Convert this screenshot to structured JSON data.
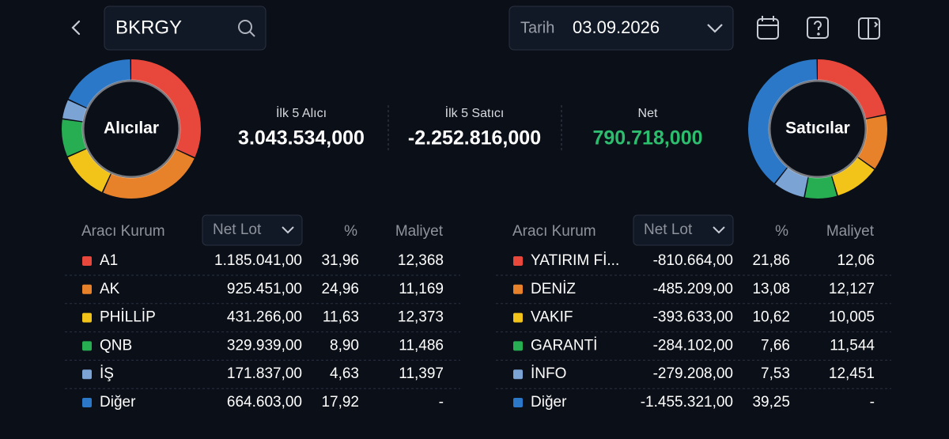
{
  "header": {
    "search": "BKRGY",
    "date_label": "Tarih",
    "date": "03.09.2026"
  },
  "donuts": [
    "Alıcılar",
    "Satıcılar"
  ],
  "summary": [
    {
      "label": "İlk 5 Alıcı",
      "value": "3.043.534,000",
      "color": "#ffffff"
    },
    {
      "label": "İlk 5 Satıcı",
      "value": "-2.252.816,000",
      "color": "#ffffff"
    },
    {
      "label": "Net",
      "value": "790.718,000",
      "color": "#2dbd6e"
    }
  ],
  "tables": [
    {
      "columns": [
        "Aracı Kurum",
        "Net Lot",
        "%",
        "Maliyet"
      ],
      "rows": [
        {
          "name": "A1",
          "color": "#e8483c",
          "net_lot": "1.185.041,00",
          "pct": "31,96",
          "cost": "12,368"
        },
        {
          "name": "AK",
          "color": "#e8822a",
          "net_lot": "925.451,00",
          "pct": "24,96",
          "cost": "11,169"
        },
        {
          "name": "PHİLLİP",
          "color": "#f2c318",
          "net_lot": "431.266,00",
          "pct": "11,63",
          "cost": "12,373"
        },
        {
          "name": "QNB",
          "color": "#27ae52",
          "net_lot": "329.939,00",
          "pct": "8,90",
          "cost": "11,486"
        },
        {
          "name": "İŞ",
          "color": "#7ba3d3",
          "net_lot": "171.837,00",
          "pct": "4,63",
          "cost": "11,397"
        },
        {
          "name": "Diğer",
          "color": "#2b78c8",
          "net_lot": "664.603,00",
          "pct": "17,92",
          "cost": "-"
        }
      ]
    },
    {
      "columns": [
        "Aracı Kurum",
        "Net Lot",
        "%",
        "Maliyet"
      ],
      "rows": [
        {
          "name": "YATIRIM Fİ...",
          "color": "#e8483c",
          "net_lot": "-810.664,00",
          "pct": "21,86",
          "cost": "12,06"
        },
        {
          "name": "DENİZ",
          "color": "#e8822a",
          "net_lot": "-485.209,00",
          "pct": "13,08",
          "cost": "12,127"
        },
        {
          "name": "VAKIF",
          "color": "#f2c318",
          "net_lot": "-393.633,00",
          "pct": "10,62",
          "cost": "10,005"
        },
        {
          "name": "GARANTİ",
          "color": "#27ae52",
          "net_lot": "-284.102,00",
          "pct": "7,66",
          "cost": "11,544"
        },
        {
          "name": "İNFO",
          "color": "#7ba3d3",
          "net_lot": "-279.208,00",
          "pct": "7,53",
          "cost": "12,451"
        },
        {
          "name": "Diğer",
          "color": "#2b78c8",
          "net_lot": "-1.455.321,00",
          "pct": "39,25",
          "cost": "-"
        }
      ]
    }
  ]
}
